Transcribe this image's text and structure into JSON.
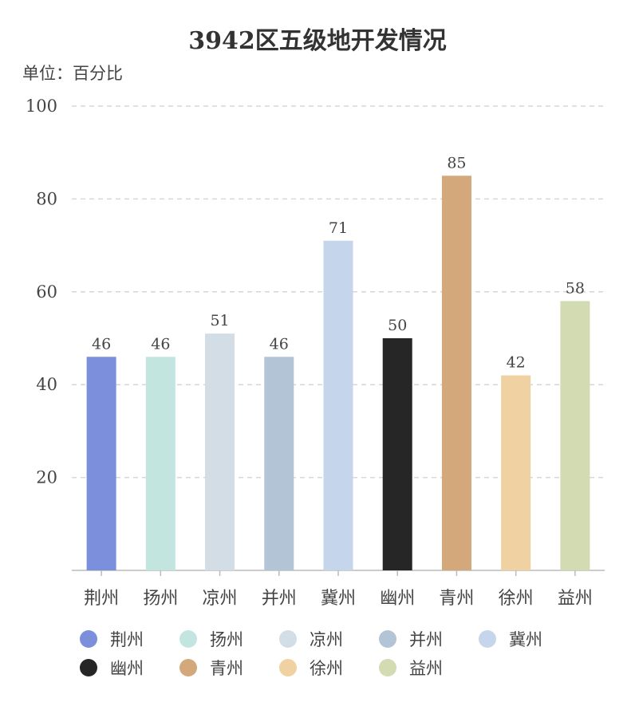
{
  "chart_data": {
    "type": "bar",
    "title": "3942区五级地开发情况",
    "unit_label": "单位：百分比",
    "categories": [
      "荆州",
      "扬州",
      "凉州",
      "并州",
      "冀州",
      "幽州",
      "青州",
      "徐州",
      "益州"
    ],
    "values": [
      46,
      46,
      51,
      46,
      71,
      50,
      85,
      42,
      58
    ],
    "colors": [
      "#7b8fdc",
      "#c2e6df",
      "#d3dde6",
      "#b2c4d6",
      "#c5d5ec",
      "#262626",
      "#d3a87a",
      "#efd1a2",
      "#d3dbb3"
    ],
    "ylim": [
      0,
      100
    ],
    "yticks": [
      20,
      40,
      60,
      80,
      100
    ],
    "grid": true,
    "legend_position": "bottom"
  }
}
